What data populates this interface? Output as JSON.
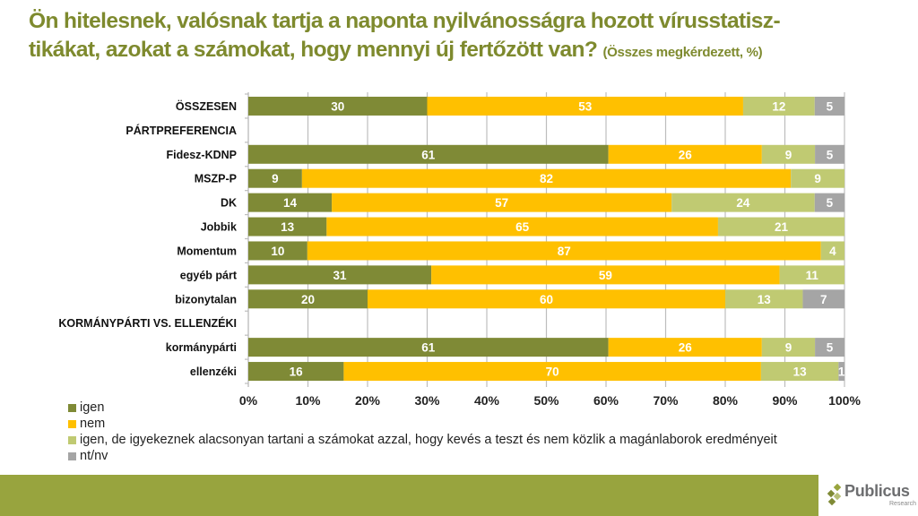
{
  "title": {
    "main": "Ön hitelesnek, valósnak tartja a naponta nyilvánosságra hozott vírusstatisz-tikákat, azokat a számokat, hogy mennyi új fertőzött van?",
    "line1": "Ön hitelesnek, valósnak tartja a naponta nyilvánosságra hozott vírusstatisz-",
    "line2": "tikákat, azokat a számokat, hogy mennyi új fertőzött van? ",
    "subtitle": "(Összes megkérdezett, %)"
  },
  "colors": {
    "title": "#7E8A2E",
    "igen": "#7F8A36",
    "nem": "#FFC000",
    "igen_de": "#C0CA72",
    "ntnv": "#A5A5A5",
    "footer": "#98A43E"
  },
  "chart_data": {
    "type": "bar",
    "orientation": "horizontal",
    "stacked": "percent",
    "title": "Ön hitelesnek, valósnak tartja a naponta nyilvánosságra hozott vírusstatisztikákat, azokat a számokat, hogy mennyi új fertőzött van? (Összes megkérdezett, %)",
    "xlabel": "",
    "ylabel": "",
    "xlim": [
      0,
      100
    ],
    "x_ticks": [
      "0%",
      "10%",
      "20%",
      "30%",
      "40%",
      "50%",
      "60%",
      "70%",
      "80%",
      "90%",
      "100%"
    ],
    "grid": true,
    "legend_position": "bottom-left",
    "categories": [
      "ÖSSZESEN",
      "PÁRTPREFERENCIA",
      "Fidesz-KDNP",
      "MSZP-P",
      "DK",
      "Jobbik",
      "Momentum",
      "egyéb párt",
      "bizonytalan",
      "KORMÁNYPÁRTI VS. ELLENZÉKI",
      "kormánypárti",
      "ellenzéki"
    ],
    "category_bold_caps": [
      true,
      true,
      false,
      false,
      false,
      false,
      false,
      false,
      false,
      true,
      false,
      false
    ],
    "series": [
      {
        "name": "igen",
        "color": "#7F8A36",
        "values": [
          30,
          null,
          61,
          9,
          14,
          13,
          10,
          31,
          20,
          null,
          61,
          16
        ]
      },
      {
        "name": "nem",
        "color": "#FFC000",
        "values": [
          53,
          null,
          26,
          82,
          57,
          65,
          87,
          59,
          60,
          null,
          26,
          70
        ]
      },
      {
        "name": "igen, de igyekeznek alacsonyan tartani a számokat azzal, hogy kevés a teszt és nem közlik a magánlaborok eredményeit",
        "color": "#C0CA72",
        "values": [
          12,
          null,
          9,
          9,
          24,
          21,
          4,
          11,
          13,
          null,
          9,
          13
        ]
      },
      {
        "name": "nt/nv",
        "color": "#A5A5A5",
        "values": [
          5,
          null,
          5,
          0,
          5,
          0,
          0,
          0,
          7,
          null,
          5,
          1
        ]
      }
    ]
  },
  "legend": [
    {
      "label": "igen",
      "color": "#7F8A36"
    },
    {
      "label": "nem",
      "color": "#FFC000"
    },
    {
      "label": "igen, de igyekeznek alacsonyan tartani a számokat azzal, hogy kevés a teszt és nem közlik a magánlaborok eredményeit",
      "color": "#C0CA72"
    },
    {
      "label": "nt/nv",
      "color": "#A5A5A5"
    }
  ],
  "logo": {
    "name": "Publicus",
    "sub": "Research"
  }
}
